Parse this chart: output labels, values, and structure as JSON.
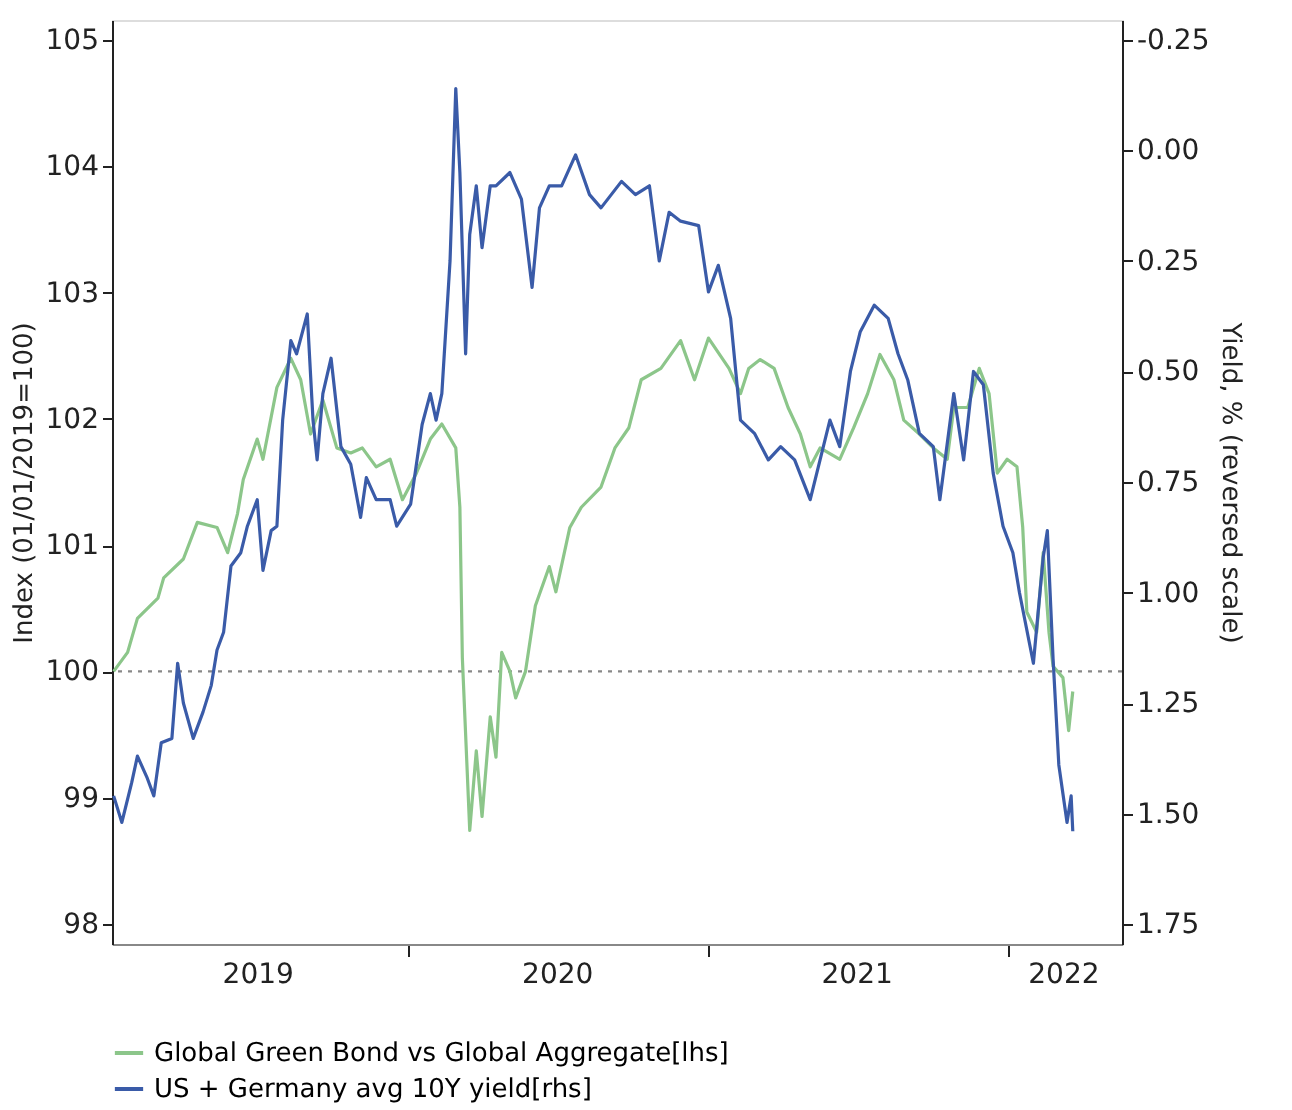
{
  "chart_data": {
    "type": "line",
    "ylabel": "Index (01/01/2019=100)",
    "y2label": "Yield, % (reversed scale)",
    "xlim": [
      "2019-01-06",
      "2022-05-21"
    ],
    "xticks": [
      {
        "value": "2019-07-02",
        "label": "2019"
      },
      {
        "value": "2020-01-01",
        "label": null
      },
      {
        "value": "2020-07-01",
        "label": "2020"
      },
      {
        "value": "2021-01-01",
        "label": null
      },
      {
        "value": "2021-07-01",
        "label": "2021"
      },
      {
        "value": "2022-01-01",
        "label": null
      },
      {
        "value": "2022-03-10",
        "label": "2022"
      }
    ],
    "ylim": [
      97.84,
      105.16
    ],
    "yticks": [
      98,
      99,
      100,
      101,
      102,
      103,
      104,
      105
    ],
    "y2lim": [
      1.795,
      -0.295
    ],
    "y2ticks": [
      -0.25,
      {
        "value": 0,
        "label": "0.00"
      },
      0.25,
      {
        "value": 0.5,
        "label": "0.50"
      },
      0.75,
      {
        "value": 1,
        "label": "1.00"
      },
      1.25,
      {
        "value": 1.5,
        "label": "1.50"
      },
      1.75
    ],
    "ref_lines": [
      {
        "axis": "y",
        "value": 100,
        "color": "#888888",
        "line_style": "dotted"
      }
    ],
    "legend": "bottom",
    "series": [
      {
        "name": "Global Green Bond vs Global Aggregate[lhs]",
        "color": "#8cc68a",
        "axis": "y",
        "x": [
          "2019-01-08",
          "2019-01-25",
          "2019-02-06",
          "2019-03-03",
          "2019-03-10",
          "2019-04-03",
          "2019-04-20",
          "2019-05-14",
          "2019-05-27",
          "2019-06-08",
          "2019-06-15",
          "2019-07-02",
          "2019-07-09",
          "2019-07-26",
          "2019-08-12",
          "2019-08-24",
          "2019-09-05",
          "2019-09-20",
          "2019-10-07",
          "2019-10-24",
          "2019-11-07",
          "2019-11-24",
          "2019-12-11",
          "2019-12-26",
          "2020-01-12",
          "2020-01-29",
          "2020-02-12",
          "2020-02-29",
          "2020-03-05",
          "2020-03-08",
          "2020-03-17",
          "2020-03-25",
          "2020-04-01",
          "2020-04-11",
          "2020-04-18",
          "2020-04-25",
          "2020-05-05",
          "2020-05-12",
          "2020-05-24",
          "2020-06-05",
          "2020-06-22",
          "2020-06-30",
          "2020-07-17",
          "2020-07-31",
          "2020-08-24",
          "2020-09-10",
          "2020-09-27",
          "2020-10-12",
          "2020-11-05",
          "2020-11-29",
          "2020-12-16",
          "2021-01-02",
          "2021-01-27",
          "2021-02-10",
          "2021-02-20",
          "2021-03-06",
          "2021-03-23",
          "2021-04-09",
          "2021-04-24",
          "2021-05-06",
          "2021-05-18",
          "2021-06-11",
          "2021-06-28",
          "2021-07-15",
          "2021-07-30",
          "2021-08-16",
          "2021-08-28",
          "2021-09-16",
          "2021-10-03",
          "2021-10-20",
          "2021-10-28",
          "2021-11-14",
          "2021-11-28",
          "2021-12-10",
          "2021-12-20",
          "2022-01-01",
          "2022-01-13",
          "2022-01-20",
          "2022-01-25",
          "2022-02-06",
          "2022-02-14",
          "2022-02-21",
          "2022-02-26",
          "2022-03-10",
          "2022-03-17",
          "2022-03-22"
        ],
        "values": [
          100.0,
          100.15,
          100.42,
          100.58,
          100.74,
          100.89,
          101.18,
          101.14,
          100.94,
          101.25,
          101.52,
          101.84,
          101.68,
          102.25,
          102.48,
          102.31,
          101.88,
          102.15,
          101.77,
          101.73,
          101.77,
          101.62,
          101.68,
          101.36,
          101.57,
          101.84,
          101.96,
          101.77,
          101.3,
          100.11,
          98.74,
          99.37,
          98.85,
          99.64,
          99.32,
          100.15,
          100.0,
          99.79,
          100.0,
          100.52,
          100.83,
          100.63,
          101.14,
          101.3,
          101.46,
          101.77,
          101.93,
          102.31,
          102.4,
          102.62,
          102.31,
          102.64,
          102.4,
          102.2,
          102.4,
          102.47,
          102.4,
          102.09,
          101.88,
          101.62,
          101.77,
          101.68,
          101.93,
          102.2,
          102.51,
          102.31,
          101.99,
          101.88,
          101.77,
          101.68,
          102.09,
          102.09,
          102.4,
          102.2,
          101.57,
          101.68,
          101.62,
          101.14,
          100.47,
          100.31,
          100.94,
          100.31,
          100.04,
          99.95,
          99.53,
          99.84
        ]
      },
      {
        "name": "US + Germany avg 10Y yield[rhs]",
        "color": "#3a5ba8",
        "axis": "y2",
        "x": [
          "2019-01-08",
          "2019-01-18",
          "2019-01-30",
          "2019-02-06",
          "2019-02-18",
          "2019-02-26",
          "2019-03-07",
          "2019-03-20",
          "2019-03-27",
          "2019-04-03",
          "2019-04-15",
          "2019-04-27",
          "2019-05-07",
          "2019-05-14",
          "2019-05-22",
          "2019-05-31",
          "2019-06-12",
          "2019-06-20",
          "2019-07-02",
          "2019-07-09",
          "2019-07-19",
          "2019-07-26",
          "2019-08-02",
          "2019-08-12",
          "2019-08-19",
          "2019-09-01",
          "2019-09-08",
          "2019-09-13",
          "2019-09-20",
          "2019-09-30",
          "2019-10-12",
          "2019-10-24",
          "2019-11-05",
          "2019-11-12",
          "2019-11-24",
          "2019-12-11",
          "2019-12-19",
          "2020-01-05",
          "2020-01-19",
          "2020-01-29",
          "2020-02-05",
          "2020-02-12",
          "2020-02-22",
          "2020-02-29",
          "2020-03-05",
          "2020-03-12",
          "2020-03-17",
          "2020-03-25",
          "2020-04-01",
          "2020-04-11",
          "2020-04-18",
          "2020-05-05",
          "2020-05-19",
          "2020-06-01",
          "2020-06-10",
          "2020-06-22",
          "2020-07-07",
          "2020-07-24",
          "2020-08-10",
          "2020-08-24",
          "2020-09-18",
          "2020-10-05",
          "2020-10-22",
          "2020-11-03",
          "2020-11-15",
          "2020-11-29",
          "2020-12-21",
          "2021-01-02",
          "2021-01-14",
          "2021-01-29",
          "2021-02-10",
          "2021-02-27",
          "2021-03-16",
          "2021-03-31",
          "2021-04-17",
          "2021-05-06",
          "2021-05-18",
          "2021-05-30",
          "2021-06-11",
          "2021-06-24",
          "2021-07-06",
          "2021-07-23",
          "2021-08-09",
          "2021-08-21",
          "2021-09-02",
          "2021-09-16",
          "2021-10-03",
          "2021-10-11",
          "2021-10-28",
          "2021-11-09",
          "2021-11-21",
          "2021-12-03",
          "2021-12-15",
          "2021-12-27",
          "2022-01-08",
          "2022-01-16",
          "2022-02-02",
          "2022-02-14",
          "2022-02-19",
          "2022-02-26",
          "2022-03-05",
          "2022-03-15",
          "2022-03-20",
          "2022-03-22"
        ],
        "values": [
          1.46,
          1.52,
          1.43,
          1.37,
          1.42,
          1.46,
          1.34,
          1.33,
          1.16,
          1.25,
          1.33,
          1.27,
          1.21,
          1.13,
          1.09,
          0.94,
          0.91,
          0.85,
          0.79,
          0.95,
          0.86,
          0.85,
          0.61,
          0.43,
          0.46,
          0.37,
          0.61,
          0.7,
          0.55,
          0.47,
          0.67,
          0.71,
          0.83,
          0.74,
          0.79,
          0.79,
          0.85,
          0.8,
          0.62,
          0.55,
          0.61,
          0.55,
          0.25,
          -0.14,
          0.05,
          0.46,
          0.19,
          0.08,
          0.22,
          0.08,
          0.08,
          0.05,
          0.11,
          0.31,
          0.13,
          0.08,
          0.08,
          0.01,
          0.1,
          0.13,
          0.07,
          0.1,
          0.08,
          0.25,
          0.14,
          0.16,
          0.17,
          0.32,
          0.26,
          0.38,
          0.61,
          0.64,
          0.7,
          0.67,
          0.7,
          0.79,
          0.7,
          0.61,
          0.67,
          0.5,
          0.41,
          0.35,
          0.38,
          0.46,
          0.52,
          0.64,
          0.67,
          0.79,
          0.55,
          0.7,
          0.5,
          0.53,
          0.73,
          0.85,
          0.91,
          1.0,
          1.16,
          0.92,
          0.86,
          1.15,
          1.39,
          1.52,
          1.46,
          1.54
        ]
      }
    ]
  }
}
